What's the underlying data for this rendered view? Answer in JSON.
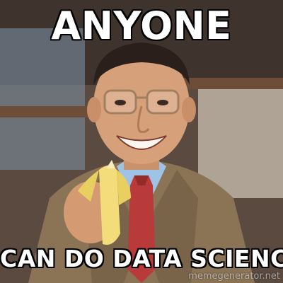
{
  "meme": {
    "top_text": "ANYONE",
    "bottom_text": "CAN DO DATA SCIENCE",
    "watermark": "memegenerator.net"
  },
  "colors": {
    "caption_fill": "#ffffff",
    "caption_outline": "#000000",
    "suit": "#8b7355",
    "shirt": "#9ec3e6",
    "tie": "#b83a3a",
    "banana": "#f3dd7a"
  }
}
